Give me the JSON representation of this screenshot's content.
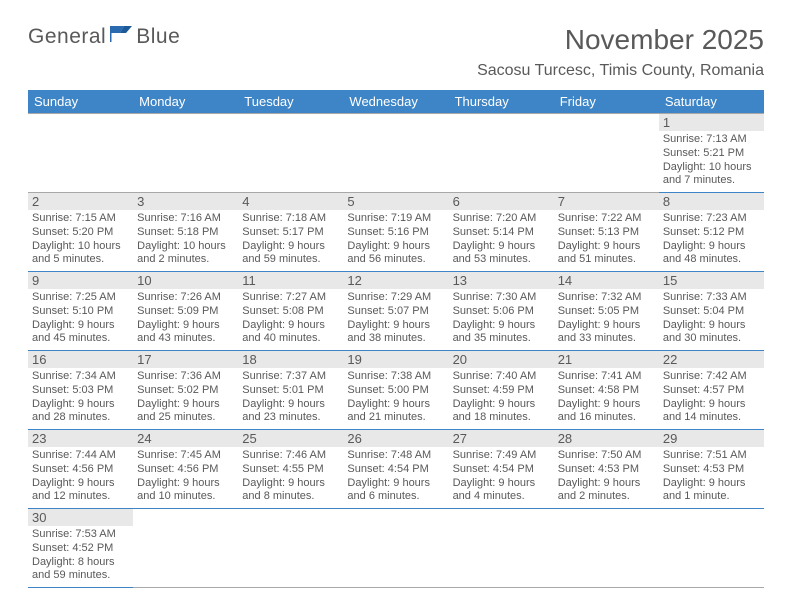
{
  "logo": {
    "brand_a": "General",
    "brand_b": "Blue"
  },
  "title": "November 2025",
  "location": "Sacosu Turcesc, Timis County, Romania",
  "colors": {
    "header_bg": "#3d85c6",
    "header_text": "#ffffff",
    "body_text": "#595959",
    "daynum_bg": "#e8e8e8",
    "row_border": "#3d85c6",
    "empty_border": "#a8a8a8",
    "logo_accent": "#2a6bb0"
  },
  "weekdays": [
    "Sunday",
    "Monday",
    "Tuesday",
    "Wednesday",
    "Thursday",
    "Friday",
    "Saturday"
  ],
  "weeks": [
    [
      null,
      null,
      null,
      null,
      null,
      null,
      {
        "n": "1",
        "sr": "Sunrise: 7:13 AM",
        "ss": "Sunset: 5:21 PM",
        "d1": "Daylight: 10 hours",
        "d2": "and 7 minutes."
      }
    ],
    [
      {
        "n": "2",
        "sr": "Sunrise: 7:15 AM",
        "ss": "Sunset: 5:20 PM",
        "d1": "Daylight: 10 hours",
        "d2": "and 5 minutes."
      },
      {
        "n": "3",
        "sr": "Sunrise: 7:16 AM",
        "ss": "Sunset: 5:18 PM",
        "d1": "Daylight: 10 hours",
        "d2": "and 2 minutes."
      },
      {
        "n": "4",
        "sr": "Sunrise: 7:18 AM",
        "ss": "Sunset: 5:17 PM",
        "d1": "Daylight: 9 hours",
        "d2": "and 59 minutes."
      },
      {
        "n": "5",
        "sr": "Sunrise: 7:19 AM",
        "ss": "Sunset: 5:16 PM",
        "d1": "Daylight: 9 hours",
        "d2": "and 56 minutes."
      },
      {
        "n": "6",
        "sr": "Sunrise: 7:20 AM",
        "ss": "Sunset: 5:14 PM",
        "d1": "Daylight: 9 hours",
        "d2": "and 53 minutes."
      },
      {
        "n": "7",
        "sr": "Sunrise: 7:22 AM",
        "ss": "Sunset: 5:13 PM",
        "d1": "Daylight: 9 hours",
        "d2": "and 51 minutes."
      },
      {
        "n": "8",
        "sr": "Sunrise: 7:23 AM",
        "ss": "Sunset: 5:12 PM",
        "d1": "Daylight: 9 hours",
        "d2": "and 48 minutes."
      }
    ],
    [
      {
        "n": "9",
        "sr": "Sunrise: 7:25 AM",
        "ss": "Sunset: 5:10 PM",
        "d1": "Daylight: 9 hours",
        "d2": "and 45 minutes."
      },
      {
        "n": "10",
        "sr": "Sunrise: 7:26 AM",
        "ss": "Sunset: 5:09 PM",
        "d1": "Daylight: 9 hours",
        "d2": "and 43 minutes."
      },
      {
        "n": "11",
        "sr": "Sunrise: 7:27 AM",
        "ss": "Sunset: 5:08 PM",
        "d1": "Daylight: 9 hours",
        "d2": "and 40 minutes."
      },
      {
        "n": "12",
        "sr": "Sunrise: 7:29 AM",
        "ss": "Sunset: 5:07 PM",
        "d1": "Daylight: 9 hours",
        "d2": "and 38 minutes."
      },
      {
        "n": "13",
        "sr": "Sunrise: 7:30 AM",
        "ss": "Sunset: 5:06 PM",
        "d1": "Daylight: 9 hours",
        "d2": "and 35 minutes."
      },
      {
        "n": "14",
        "sr": "Sunrise: 7:32 AM",
        "ss": "Sunset: 5:05 PM",
        "d1": "Daylight: 9 hours",
        "d2": "and 33 minutes."
      },
      {
        "n": "15",
        "sr": "Sunrise: 7:33 AM",
        "ss": "Sunset: 5:04 PM",
        "d1": "Daylight: 9 hours",
        "d2": "and 30 minutes."
      }
    ],
    [
      {
        "n": "16",
        "sr": "Sunrise: 7:34 AM",
        "ss": "Sunset: 5:03 PM",
        "d1": "Daylight: 9 hours",
        "d2": "and 28 minutes."
      },
      {
        "n": "17",
        "sr": "Sunrise: 7:36 AM",
        "ss": "Sunset: 5:02 PM",
        "d1": "Daylight: 9 hours",
        "d2": "and 25 minutes."
      },
      {
        "n": "18",
        "sr": "Sunrise: 7:37 AM",
        "ss": "Sunset: 5:01 PM",
        "d1": "Daylight: 9 hours",
        "d2": "and 23 minutes."
      },
      {
        "n": "19",
        "sr": "Sunrise: 7:38 AM",
        "ss": "Sunset: 5:00 PM",
        "d1": "Daylight: 9 hours",
        "d2": "and 21 minutes."
      },
      {
        "n": "20",
        "sr": "Sunrise: 7:40 AM",
        "ss": "Sunset: 4:59 PM",
        "d1": "Daylight: 9 hours",
        "d2": "and 18 minutes."
      },
      {
        "n": "21",
        "sr": "Sunrise: 7:41 AM",
        "ss": "Sunset: 4:58 PM",
        "d1": "Daylight: 9 hours",
        "d2": "and 16 minutes."
      },
      {
        "n": "22",
        "sr": "Sunrise: 7:42 AM",
        "ss": "Sunset: 4:57 PM",
        "d1": "Daylight: 9 hours",
        "d2": "and 14 minutes."
      }
    ],
    [
      {
        "n": "23",
        "sr": "Sunrise: 7:44 AM",
        "ss": "Sunset: 4:56 PM",
        "d1": "Daylight: 9 hours",
        "d2": "and 12 minutes."
      },
      {
        "n": "24",
        "sr": "Sunrise: 7:45 AM",
        "ss": "Sunset: 4:56 PM",
        "d1": "Daylight: 9 hours",
        "d2": "and 10 minutes."
      },
      {
        "n": "25",
        "sr": "Sunrise: 7:46 AM",
        "ss": "Sunset: 4:55 PM",
        "d1": "Daylight: 9 hours",
        "d2": "and 8 minutes."
      },
      {
        "n": "26",
        "sr": "Sunrise: 7:48 AM",
        "ss": "Sunset: 4:54 PM",
        "d1": "Daylight: 9 hours",
        "d2": "and 6 minutes."
      },
      {
        "n": "27",
        "sr": "Sunrise: 7:49 AM",
        "ss": "Sunset: 4:54 PM",
        "d1": "Daylight: 9 hours",
        "d2": "and 4 minutes."
      },
      {
        "n": "28",
        "sr": "Sunrise: 7:50 AM",
        "ss": "Sunset: 4:53 PM",
        "d1": "Daylight: 9 hours",
        "d2": "and 2 minutes."
      },
      {
        "n": "29",
        "sr": "Sunrise: 7:51 AM",
        "ss": "Sunset: 4:53 PM",
        "d1": "Daylight: 9 hours",
        "d2": "and 1 minute."
      }
    ],
    [
      {
        "n": "30",
        "sr": "Sunrise: 7:53 AM",
        "ss": "Sunset: 4:52 PM",
        "d1": "Daylight: 8 hours",
        "d2": "and 59 minutes."
      },
      null,
      null,
      null,
      null,
      null,
      null
    ]
  ]
}
